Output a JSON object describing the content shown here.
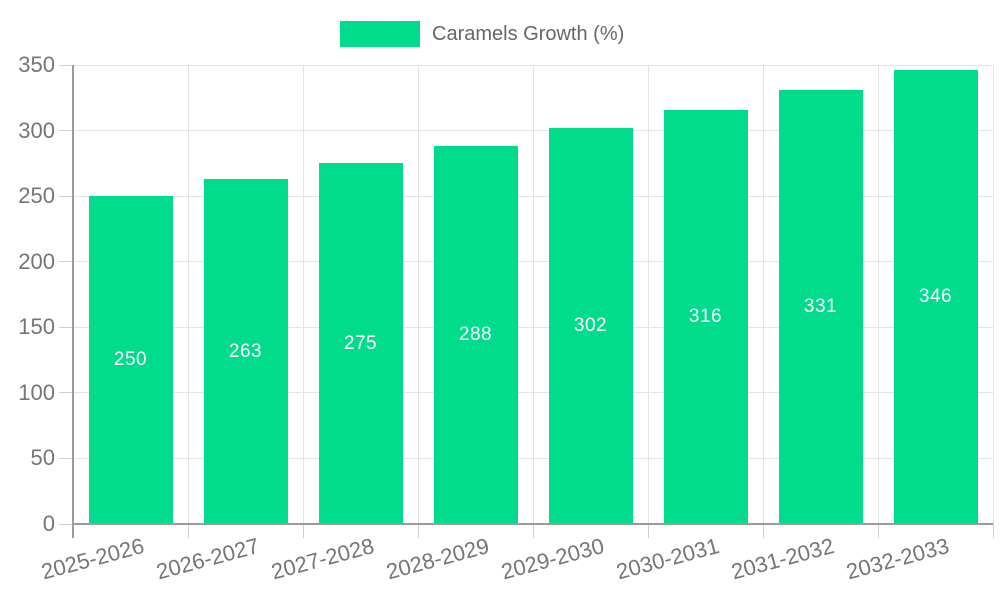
{
  "legend": {
    "label": "Caramels Growth (%)"
  },
  "chart_data": {
    "type": "bar",
    "title": "",
    "xlabel": "",
    "ylabel": "",
    "series_name": "Caramels Growth (%)",
    "categories": [
      "2025-2026",
      "2026-2027",
      "2027-2028",
      "2028-2029",
      "2029-2030",
      "2030-2031",
      "2031-2032",
      "2032-2033"
    ],
    "values": [
      250,
      263,
      275,
      288,
      302,
      316,
      331,
      346
    ],
    "value_labels": [
      "250",
      "263",
      "275",
      "288",
      "302",
      "316",
      "331",
      "346"
    ],
    "yticks": [
      0,
      50,
      100,
      150,
      200,
      250,
      300,
      350
    ],
    "ytick_labels": [
      "0",
      "50",
      "100",
      "150",
      "200",
      "250",
      "300",
      "350"
    ],
    "ylim": [
      0,
      350
    ],
    "grid": true,
    "legend_position": "top-center",
    "bar_color": "#00DC8C",
    "value_label_color": "#FFFFFF",
    "grid_color": "#E4E4E4",
    "tick_color": "#CFCFCF",
    "axis_line_color": "#9B9B9B",
    "axis_text_color": "#757575",
    "legend_text_color": "#666666"
  }
}
